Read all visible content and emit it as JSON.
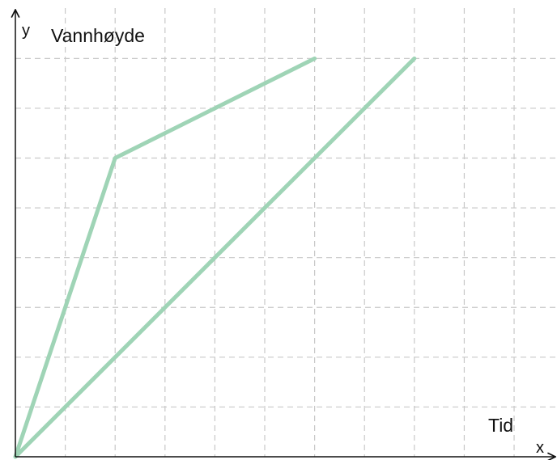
{
  "chart_data": {
    "type": "line",
    "y_axis_letter": "y",
    "y_label": "Vannhøyde",
    "x_axis_letter": "x",
    "x_label": "Tid",
    "xlim": [
      0,
      10.86
    ],
    "ylim": [
      0,
      8.85
    ],
    "xticks": [
      1,
      2,
      3,
      4,
      5,
      6,
      7,
      8,
      9,
      10
    ],
    "yticks": [
      1,
      2,
      3,
      4,
      5,
      6,
      7,
      8
    ],
    "grid": true,
    "series": [
      {
        "color": "#9fd4b6",
        "x": [
          0,
          2,
          6
        ],
        "values": [
          0,
          6,
          8
        ]
      },
      {
        "color": "#9fd4b6",
        "x": [
          0,
          8
        ],
        "values": [
          0,
          8
        ]
      }
    ]
  }
}
